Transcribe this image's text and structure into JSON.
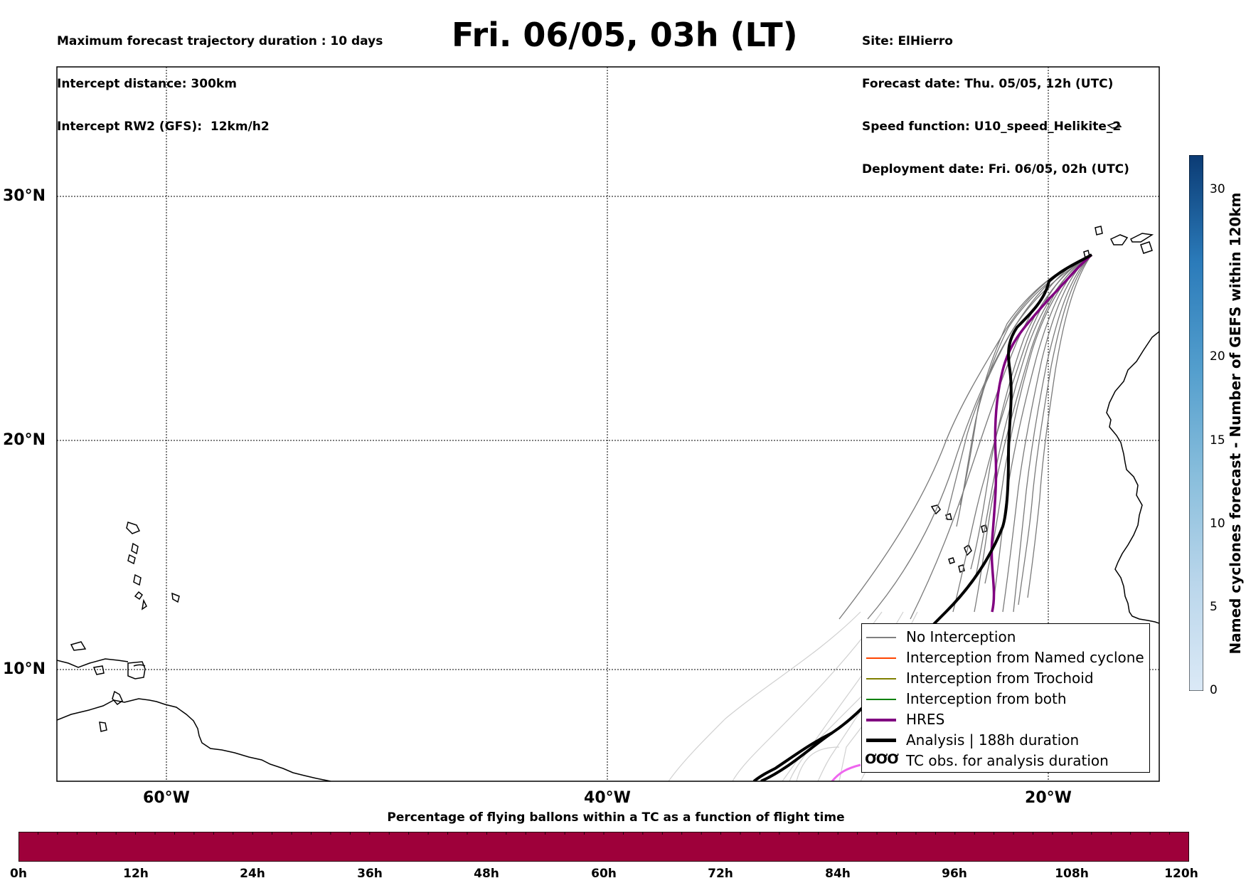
{
  "header": {
    "left_lines": [
      "Maximum forecast trajectory duration : 10 days",
      "Intercept distance: 300km",
      "Intercept RW2 (GFS):  12km/h2"
    ],
    "title": "Fri. 06/05, 03h (LT)",
    "right_lines": [
      "Site: ElHierro",
      "Forecast date: Thu. 05/05, 12h (UTC)",
      "Speed function: U10_speed_Helikite_2",
      "Deployment date: Fri. 06/05, 02h (UTC)"
    ]
  },
  "map": {
    "lat_labels": [
      "30°N",
      "20°N",
      "10°N"
    ],
    "lon_labels": [
      "60°W",
      "40°W",
      "20°W"
    ],
    "extent": {
      "lon_min": -65,
      "lon_max": -15,
      "lat_min": 5,
      "lat_max": 35
    }
  },
  "legend": {
    "items": [
      {
        "label": "No Interception",
        "color": "#808080"
      },
      {
        "label": "Interception from Named cyclone",
        "color": "#ff4500"
      },
      {
        "label": "Interception from Trochoid",
        "color": "#808000"
      },
      {
        "label": "Interception from both",
        "color": "#008000"
      },
      {
        "label": "HRES",
        "color": "#800080"
      },
      {
        "label": "Analysis | 188h duration",
        "color": "#000000"
      },
      {
        "label": "TC obs. for analysis duration",
        "color": "#000000",
        "symbol": "ƠƠƠ"
      }
    ]
  },
  "colorbar_vertical": {
    "title": "Named cyclones forecast - Number of GEFS within 120km",
    "ticks": [
      "0",
      "5",
      "10",
      "15",
      "20",
      "30"
    ],
    "range": [
      0,
      32
    ]
  },
  "colorbar_horizontal": {
    "title": "Percentage of flying ballons within a TC as a function of flight time",
    "ticks": [
      "0h",
      "12h",
      "24h",
      "36h",
      "48h",
      "60h",
      "72h",
      "84h",
      "96h",
      "108h",
      "120h"
    ],
    "color": "#9e003a"
  }
}
